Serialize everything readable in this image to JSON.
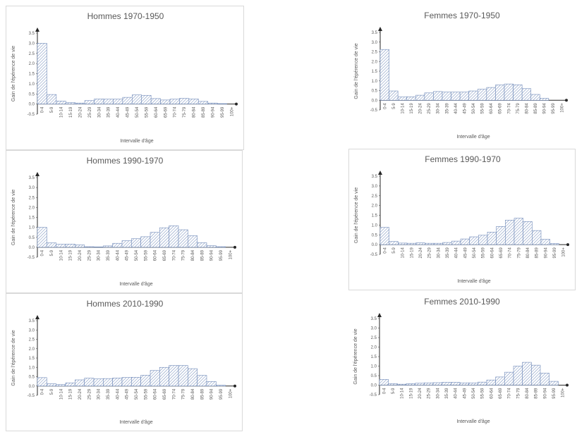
{
  "chart_data": [
    {
      "type": "bar",
      "title": "Hommes 1970-1950",
      "xlabel": "Intervalle d'âge",
      "ylabel": "Gain de l'épérence de vie",
      "ylim": [
        -0.5,
        3.5
      ],
      "yticks": [
        "-0.5",
        "0.0",
        "0.5",
        "1.0",
        "1.5",
        "2.0",
        "2.5",
        "3.0",
        "3.5"
      ],
      "categories": [
        "0-4",
        "5-9",
        "10-14",
        "15-19",
        "20-24",
        "25-29",
        "30-34",
        "35-39",
        "40-44",
        "45-49",
        "50-54",
        "55-59",
        "60-64",
        "65-69",
        "70-74",
        "75-79",
        "80-84",
        "85-89",
        "90-94",
        "95-99",
        "100+"
      ],
      "values": [
        3.0,
        0.47,
        0.15,
        0.07,
        0.05,
        0.17,
        0.25,
        0.24,
        0.24,
        0.33,
        0.45,
        0.43,
        0.27,
        0.2,
        0.24,
        0.28,
        0.25,
        0.13,
        0.05,
        0.02,
        0.0
      ],
      "grid": false
    },
    {
      "type": "bar",
      "title": "Femmes 1970-1950",
      "xlabel": "Intervalle d'âge",
      "ylabel": "Gain de l'épérence de vie",
      "ylim": [
        -0.5,
        3.5
      ],
      "yticks": [
        "-0.5",
        "0.0",
        "0.5",
        "1.0",
        "1.5",
        "2.0",
        "2.5",
        "3.0",
        "3.5"
      ],
      "categories": [
        "0-4",
        "5-9",
        "10-14",
        "15-19",
        "20-24",
        "25-29",
        "30-34",
        "35-39",
        "40-44",
        "45-49",
        "50-54",
        "55-59",
        "60-64",
        "65-69",
        "70-74",
        "75-79",
        "80-84",
        "85-89",
        "90-94",
        "95-99",
        "100+"
      ],
      "values": [
        2.62,
        0.48,
        0.17,
        0.18,
        0.26,
        0.38,
        0.45,
        0.42,
        0.42,
        0.42,
        0.48,
        0.57,
        0.66,
        0.79,
        0.84,
        0.8,
        0.6,
        0.3,
        0.1,
        0.0,
        0.0
      ],
      "grid": false
    },
    {
      "type": "bar",
      "title": "Hommes 1990-1970",
      "xlabel": "Intervalle d'âge",
      "ylabel": "Gain de l'épérence de vie",
      "ylim": [
        -0.5,
        3.5
      ],
      "yticks": [
        "-0.5",
        "0.0",
        "0.5",
        "1.0",
        "1.5",
        "2.0",
        "2.5",
        "3.0",
        "3.5"
      ],
      "categories": [
        "0-4",
        "5-9",
        "10-14",
        "15-19",
        "20-24",
        "25-29",
        "30-34",
        "35-39",
        "40-44",
        "45-49",
        "50-54",
        "55-59",
        "60-64",
        "65-69",
        "70-74",
        "75-79",
        "80-84",
        "85-89",
        "90-94",
        "95-99",
        "100+"
      ],
      "values": [
        1.0,
        0.22,
        0.15,
        0.16,
        0.12,
        0.03,
        0.02,
        0.07,
        0.2,
        0.33,
        0.43,
        0.53,
        0.75,
        0.98,
        1.08,
        0.88,
        0.58,
        0.23,
        0.08,
        0.03,
        0.0
      ],
      "grid": false
    },
    {
      "type": "bar",
      "title": "Femmes 1990-1970",
      "xlabel": "Intervalle d'âge",
      "ylabel": "Gain de l'épérence de vie",
      "ylim": [
        -0.5,
        3.5
      ],
      "yticks": [
        "-0.5",
        "0.0",
        "0.5",
        "1.0",
        "1.5",
        "2.0",
        "2.5",
        "3.0",
        "3.5"
      ],
      "categories": [
        "0-4",
        "5-9",
        "10-14",
        "15-19",
        "20-24",
        "25-29",
        "30-34",
        "35-39",
        "40-44",
        "45-49",
        "50-54",
        "55-59",
        "60-64",
        "65-69",
        "70-74",
        "75-79",
        "80-84",
        "85-89",
        "90-94",
        "95-99",
        "100+"
      ],
      "values": [
        0.88,
        0.16,
        0.08,
        0.07,
        0.09,
        0.07,
        0.07,
        0.11,
        0.18,
        0.29,
        0.4,
        0.48,
        0.64,
        0.93,
        1.25,
        1.35,
        1.18,
        0.72,
        0.27,
        0.06,
        0.0
      ],
      "grid": false
    },
    {
      "type": "bar",
      "title": "Hommes 2010-1990",
      "xlabel": "Intervalle d'âge",
      "ylabel": "Gain de l'épérence de vie",
      "ylim": [
        -0.5,
        3.5
      ],
      "yticks": [
        "-0.5",
        "0.0",
        "0.5",
        "1.0",
        "1.5",
        "2.0",
        "2.5",
        "3.0",
        "3.5"
      ],
      "categories": [
        "0-4",
        "5-9",
        "10-14",
        "15-19",
        "20-24",
        "25-29",
        "30-34",
        "35-39",
        "40-44",
        "45-49",
        "50-54",
        "55-59",
        "60-64",
        "65-69",
        "70-74",
        "75-79",
        "80-84",
        "85-89",
        "90-94",
        "95-99",
        "100+"
      ],
      "values": [
        0.45,
        0.12,
        0.08,
        0.17,
        0.33,
        0.42,
        0.38,
        0.4,
        0.43,
        0.46,
        0.47,
        0.58,
        0.83,
        1.0,
        1.1,
        1.1,
        0.93,
        0.57,
        0.24,
        0.04,
        0.0
      ],
      "grid": false
    },
    {
      "type": "bar",
      "title": "Femmes 2010-1990",
      "xlabel": "Intervalle d'âge",
      "ylabel": "Gain de l'épérence de vie",
      "ylim": [
        -0.5,
        3.5
      ],
      "yticks": [
        "-0.5",
        "0.0",
        "0.5",
        "1.0",
        "1.5",
        "2.0",
        "2.5",
        "3.0",
        "3.5"
      ],
      "categories": [
        "0-4",
        "5-9",
        "10-14",
        "15-19",
        "20-24",
        "25-29",
        "30-34",
        "35-39",
        "40-44",
        "45-49",
        "50-54",
        "55-59",
        "60-64",
        "65-69",
        "70-74",
        "75-79",
        "80-84",
        "85-89",
        "90-94",
        "95-99",
        "100+"
      ],
      "values": [
        0.3,
        0.08,
        0.05,
        0.08,
        0.1,
        0.12,
        0.13,
        0.15,
        0.15,
        0.12,
        0.12,
        0.16,
        0.27,
        0.43,
        0.68,
        1.0,
        1.2,
        1.05,
        0.63,
        0.2,
        0.0
      ],
      "grid": false
    }
  ]
}
